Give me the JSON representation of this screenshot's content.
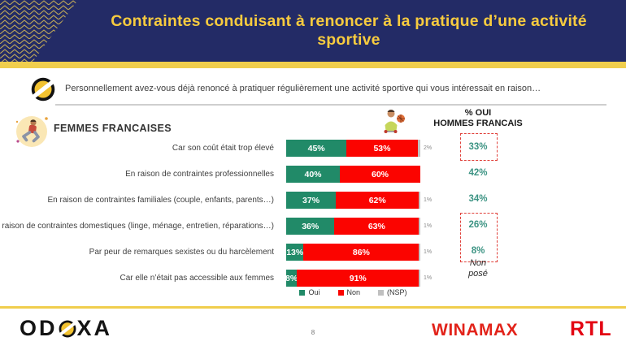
{
  "header": {
    "title": "Contraintes conduisant à renoncer à la pratique d’une activité sportive",
    "bg_color": "#232B66",
    "accent_color": "#F0CE4D",
    "title_color": "#F7CB3F"
  },
  "question": {
    "text": "Personnellement avez-vous déjà renoncé à pratiquer régulièrement une activité sportive qui vous intéressait en raison…"
  },
  "group": {
    "label": "FEMMES FRANCAISES"
  },
  "chart_data": {
    "type": "bar",
    "orientation": "horizontal-stacked",
    "categories": [
      "Car son coût était trop élevé",
      "En raison de contraintes professionnelles",
      "En raison de contraintes familiales (couple, enfants, parents…)",
      "En raison de contraintes domestiques (linge, ménage, entretien, réparations…)",
      "Par peur de remarques sexistes ou du harcèlement",
      "Car elle n’était pas accessible aux femmes"
    ],
    "series": [
      {
        "name": "Oui",
        "color": "#218A68",
        "values": [
          45,
          40,
          37,
          36,
          13,
          8
        ]
      },
      {
        "name": "Non",
        "color": "#FB0400",
        "values": [
          53,
          60,
          62,
          63,
          86,
          91
        ]
      },
      {
        "name": "(NSP)",
        "color": "#C0C0C0",
        "values": [
          2,
          0,
          1,
          1,
          1,
          1
        ]
      }
    ],
    "legend_position": "bottom",
    "xlim": [
      0,
      100
    ],
    "value_suffix": "%",
    "right_column": {
      "header_line1": "% OUI",
      "header_line2": "HOMMES FRANCAIS",
      "values": [
        "33%",
        "42%",
        "34%",
        "26%",
        "8%",
        "Non posé"
      ],
      "value_color": "#3D9484",
      "highlight_box_color": "#E0403A",
      "highlighted_rows": [
        [
          0
        ],
        [
          3,
          4
        ]
      ]
    }
  },
  "footer": {
    "odoxa_prefix": "OD",
    "odoxa_suffix": "XA",
    "page_number": "8",
    "winamax": "WINAMAX",
    "rtl": "RTL"
  }
}
